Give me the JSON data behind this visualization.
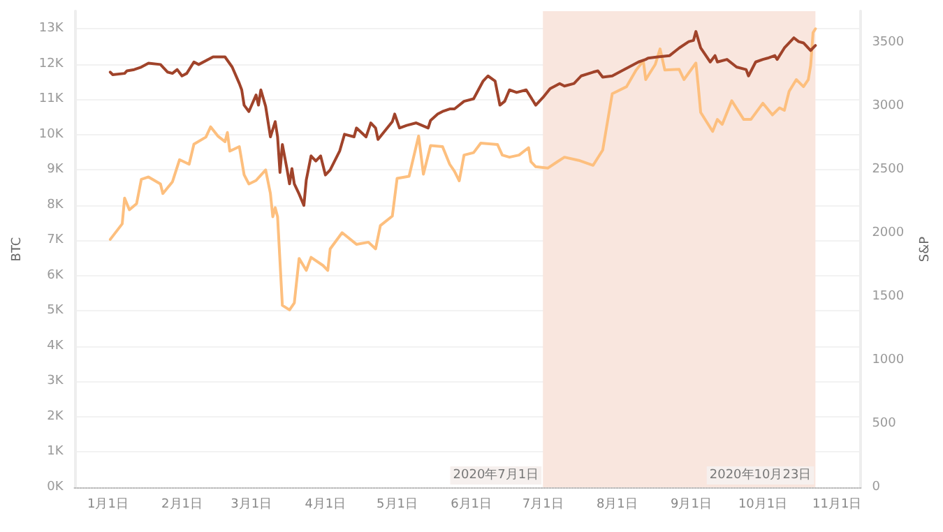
{
  "chart_data": {
    "type": "line",
    "ylabel": "BTC",
    "y2label": "S&P",
    "ylim": [
      0,
      13500
    ],
    "yticks": [
      {
        "value": 0,
        "label": "0K"
      },
      {
        "value": 1000,
        "label": "1K"
      },
      {
        "value": 2000,
        "label": "2K"
      },
      {
        "value": 3000,
        "label": "3K"
      },
      {
        "value": 4000,
        "label": "4K"
      },
      {
        "value": 5000,
        "label": "5K"
      },
      {
        "value": 6000,
        "label": "6K"
      },
      {
        "value": 7000,
        "label": "7K"
      },
      {
        "value": 8000,
        "label": "8K"
      },
      {
        "value": 9000,
        "label": "9K"
      },
      {
        "value": 10000,
        "label": "10K"
      },
      {
        "value": 11000,
        "label": "11K"
      },
      {
        "value": 12000,
        "label": "12K"
      },
      {
        "value": 13000,
        "label": "13K"
      }
    ],
    "y2lim": [
      0,
      3750
    ],
    "y2ticks": [
      0,
      500,
      1000,
      1500,
      2000,
      2500,
      3000,
      3500
    ],
    "xlim": [
      "2019-12-18",
      "2020-11-11"
    ],
    "xticks": [
      {
        "value": "2020-01-01",
        "label": "1月1日"
      },
      {
        "value": "2020-02-01",
        "label": "2月1日"
      },
      {
        "value": "2020-03-01",
        "label": "3月1日"
      },
      {
        "value": "2020-04-01",
        "label": "4月1日"
      },
      {
        "value": "2020-05-01",
        "label": "5月1日"
      },
      {
        "value": "2020-06-01",
        "label": "6月1日"
      },
      {
        "value": "2020-07-01",
        "label": "7月1日"
      },
      {
        "value": "2020-08-01",
        "label": "8月1日"
      },
      {
        "value": "2020-09-01",
        "label": "9月1日"
      },
      {
        "value": "2020-10-01",
        "label": "10月1日"
      },
      {
        "value": "2020-11-01",
        "label": "11月1日"
      }
    ],
    "grid": "y",
    "marker": "none",
    "line_style": "solid",
    "bands": [
      {
        "axis": "x",
        "from": "2020-07-01",
        "to": "2020-10-23",
        "color": "#f9e6de"
      }
    ],
    "annotations": [
      {
        "text": "2020年7月1日",
        "x": "2020-07-01",
        "y": 0
      },
      {
        "text": "2020年10月23日",
        "x": "2020-10-23",
        "y": 0
      }
    ],
    "series": [
      {
        "color": "#fdbf7e",
        "x": [
          "2020-01-02",
          "2020-01-07",
          "2020-01-08",
          "2020-01-10",
          "2020-01-13",
          "2020-01-15",
          "2020-01-18",
          "2020-01-23",
          "2020-01-24",
          "2020-01-28",
          "2020-01-31",
          "2020-02-04",
          "2020-02-06",
          "2020-02-11",
          "2020-02-13",
          "2020-02-16",
          "2020-02-19",
          "2020-02-20",
          "2020-02-21",
          "2020-02-25",
          "2020-02-27",
          "2020-02-29",
          "2020-03-03",
          "2020-03-07",
          "2020-03-09",
          "2020-03-10",
          "2020-03-11",
          "2020-03-12",
          "2020-03-14",
          "2020-03-17",
          "2020-03-19",
          "2020-03-21",
          "2020-03-24",
          "2020-03-26",
          "2020-03-31",
          "2020-04-02",
          "2020-04-03",
          "2020-04-08",
          "2020-04-14",
          "2020-04-19",
          "2020-04-22",
          "2020-04-24",
          "2020-04-29",
          "2020-05-01",
          "2020-05-06",
          "2020-05-10",
          "2020-05-12",
          "2020-05-15",
          "2020-05-20",
          "2020-05-23",
          "2020-05-25",
          "2020-05-27",
          "2020-05-29",
          "2020-06-02",
          "2020-06-05",
          "2020-06-12",
          "2020-06-14",
          "2020-06-17",
          "2020-06-21",
          "2020-06-25",
          "2020-06-26",
          "2020-06-28",
          "2020-07-03",
          "2020-07-07",
          "2020-07-10",
          "2020-07-16",
          "2020-07-22",
          "2020-07-26",
          "2020-07-28",
          "2020-07-30",
          "2020-08-05",
          "2020-08-09",
          "2020-08-12",
          "2020-08-13",
          "2020-08-17",
          "2020-08-19",
          "2020-08-21",
          "2020-08-27",
          "2020-08-29",
          "2020-09-03",
          "2020-09-04",
          "2020-09-05",
          "2020-09-10",
          "2020-09-12",
          "2020-09-14",
          "2020-09-18",
          "2020-09-23",
          "2020-09-26",
          "2020-10-01",
          "2020-10-05",
          "2020-10-08",
          "2020-10-10",
          "2020-10-12",
          "2020-10-15",
          "2020-10-18",
          "2020-10-20",
          "2020-10-21",
          "2020-10-22",
          "2020-10-23"
        ],
        "values": [
          7030,
          7470,
          8200,
          7870,
          8040,
          8730,
          8800,
          8600,
          8330,
          8660,
          9290,
          9160,
          9730,
          9930,
          10220,
          9960,
          9800,
          10060,
          9530,
          9660,
          8860,
          8600,
          8700,
          9000,
          8330,
          7670,
          7930,
          7670,
          5160,
          5030,
          5230,
          6490,
          6150,
          6520,
          6290,
          6150,
          6760,
          7220,
          6890,
          6950,
          6760,
          7420,
          7690,
          8760,
          8820,
          9960,
          8880,
          9690,
          9660,
          9160,
          8960,
          8690,
          9420,
          9490,
          9760,
          9720,
          9420,
          9360,
          9420,
          9630,
          9230,
          9090,
          9050,
          9230,
          9360,
          9270,
          9130,
          9560,
          10360,
          11160,
          11360,
          11830,
          12090,
          11560,
          11990,
          12430,
          11830,
          11850,
          11560,
          12030,
          11360,
          10630,
          10090,
          10430,
          10290,
          10960,
          10430,
          10430,
          10890,
          10560,
          10760,
          10690,
          11230,
          11560,
          11360,
          11560,
          11960,
          12890,
          13000
        ]
      },
      {
        "color": "#a0432a",
        "axis": "y2",
        "x": [
          "2020-01-02",
          "2020-01-03",
          "2020-01-08",
          "2020-01-09",
          "2020-01-12",
          "2020-01-15",
          "2020-01-18",
          "2020-01-23",
          "2020-01-26",
          "2020-01-28",
          "2020-01-30",
          "2020-02-01",
          "2020-02-03",
          "2020-02-06",
          "2020-02-08",
          "2020-02-14",
          "2020-02-18",
          "2020-02-19",
          "2020-02-22",
          "2020-02-25",
          "2020-02-26",
          "2020-02-27",
          "2020-02-29",
          "2020-03-03",
          "2020-03-04",
          "2020-03-05",
          "2020-03-07",
          "2020-03-09",
          "2020-03-11",
          "2020-03-12",
          "2020-03-13",
          "2020-03-14",
          "2020-03-16",
          "2020-03-17",
          "2020-03-18",
          "2020-03-19",
          "2020-03-21",
          "2020-03-23",
          "2020-03-24",
          "2020-03-26",
          "2020-03-28",
          "2020-03-30",
          "2020-04-01",
          "2020-04-03",
          "2020-04-07",
          "2020-04-09",
          "2020-04-13",
          "2020-04-14",
          "2020-04-18",
          "2020-04-20",
          "2020-04-22",
          "2020-04-23",
          "2020-04-26",
          "2020-04-29",
          "2020-04-30",
          "2020-05-02",
          "2020-05-05",
          "2020-05-09",
          "2020-05-14",
          "2020-05-15",
          "2020-05-18",
          "2020-05-20",
          "2020-05-23",
          "2020-05-25",
          "2020-05-29",
          "2020-06-02",
          "2020-06-04",
          "2020-06-06",
          "2020-06-08",
          "2020-06-11",
          "2020-06-13",
          "2020-06-15",
          "2020-06-17",
          "2020-06-20",
          "2020-06-24",
          "2020-06-26",
          "2020-06-28",
          "2020-07-01",
          "2020-07-04",
          "2020-07-08",
          "2020-07-10",
          "2020-07-14",
          "2020-07-17",
          "2020-07-22",
          "2020-07-24",
          "2020-07-26",
          "2020-07-30",
          "2020-08-02",
          "2020-08-06",
          "2020-08-10",
          "2020-08-13",
          "2020-08-14",
          "2020-08-18",
          "2020-08-23",
          "2020-08-27",
          "2020-08-31",
          "2020-09-02",
          "2020-09-03",
          "2020-09-05",
          "2020-09-09",
          "2020-09-11",
          "2020-09-12",
          "2020-09-16",
          "2020-09-20",
          "2020-09-24",
          "2020-09-25",
          "2020-09-28",
          "2020-10-01",
          "2020-10-03",
          "2020-10-06",
          "2020-10-07",
          "2020-10-10",
          "2020-10-14",
          "2020-10-16",
          "2020-10-18",
          "2020-10-21",
          "2020-10-22",
          "2020-10-23"
        ],
        "values": [
          3270,
          3250,
          3260,
          3280,
          3290,
          3310,
          3340,
          3330,
          3270,
          3260,
          3290,
          3240,
          3260,
          3350,
          3330,
          3390,
          3390,
          3390,
          3310,
          3180,
          3130,
          3010,
          2960,
          3090,
          3010,
          3130,
          3000,
          2760,
          2880,
          2760,
          2480,
          2700,
          2500,
          2390,
          2510,
          2390,
          2310,
          2220,
          2420,
          2610,
          2570,
          2610,
          2460,
          2500,
          2650,
          2780,
          2760,
          2830,
          2760,
          2870,
          2830,
          2740,
          2810,
          2880,
          2940,
          2830,
          2850,
          2870,
          2830,
          2890,
          2940,
          2960,
          2980,
          2980,
          3040,
          3060,
          3130,
          3200,
          3240,
          3200,
          3010,
          3040,
          3130,
          3110,
          3130,
          3070,
          3010,
          3070,
          3140,
          3180,
          3160,
          3180,
          3240,
          3270,
          3280,
          3230,
          3240,
          3270,
          3310,
          3350,
          3370,
          3380,
          3390,
          3400,
          3460,
          3510,
          3520,
          3590,
          3460,
          3350,
          3400,
          3350,
          3370,
          3310,
          3290,
          3240,
          3350,
          3370,
          3380,
          3400,
          3370,
          3460,
          3540,
          3510,
          3500,
          3440,
          3460,
          3480
        ]
      }
    ]
  }
}
